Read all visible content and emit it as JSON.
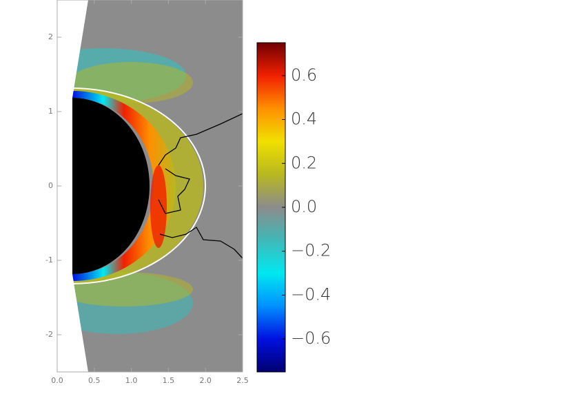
{
  "chart_data": {
    "type": "heatmap",
    "xlim": [
      0,
      2.5
    ],
    "ylim": [
      -2.5,
      2.5
    ],
    "xticks": [
      {
        "value": 0,
        "label": "0.0"
      },
      0.5,
      {
        "value": 1,
        "label": "1.0"
      },
      1.5,
      {
        "value": 2,
        "label": "2.0"
      },
      2.5
    ],
    "yticks": [
      -2,
      -1,
      0,
      1,
      2
    ],
    "colorbar": {
      "lim": [
        -0.75,
        0.75
      ],
      "ticks": [
        {
          "value": -0.6,
          "label": "−0.6"
        },
        {
          "value": -0.4,
          "label": "−0.4"
        },
        {
          "value": -0.2,
          "label": "−0.2"
        },
        {
          "value": 0,
          "label": "0.0"
        },
        0.2,
        0.4,
        0.6
      ],
      "colors": [
        "#000070",
        "#0010e0",
        "#0090ff",
        "#00e8f0",
        "#40b8b8",
        "#8c8c8c",
        "#b8b820",
        "#f0e000",
        "#ff9000",
        "#f02000",
        "#700000"
      ]
    }
  }
}
